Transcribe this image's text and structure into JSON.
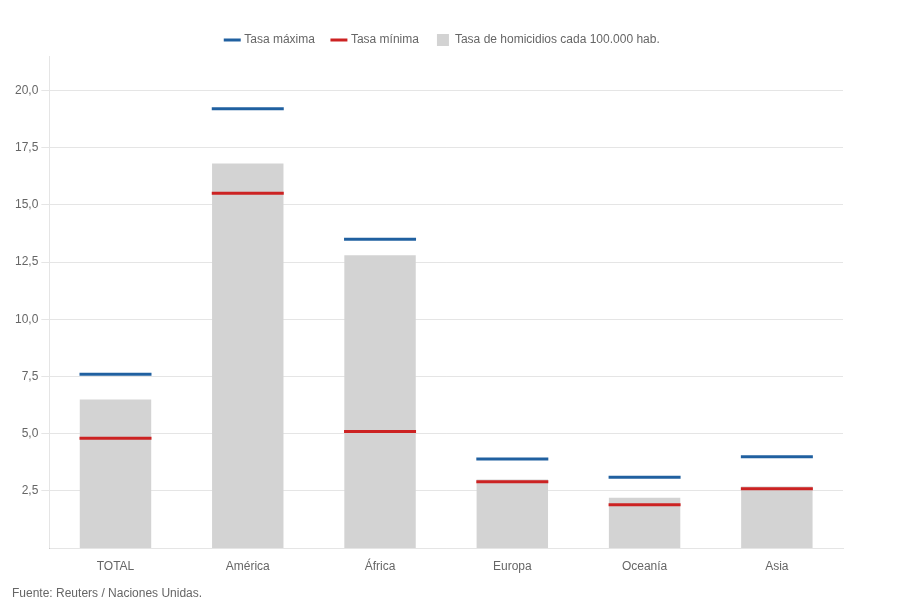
{
  "chart_data": {
    "type": "bar",
    "categories": [
      "TOTAL",
      "América",
      "África",
      "Europa",
      "Oceanía",
      "Asia"
    ],
    "series": [
      {
        "name": "Tasa de homicidios cada 100.000 hab.",
        "type": "bar",
        "color": "#d3d3d3",
        "values": [
          6.5,
          16.8,
          12.8,
          3.0,
          2.2,
          2.7
        ]
      },
      {
        "name": "Tasa máxima",
        "type": "scatter",
        "marker": "line",
        "color": "#2060a0",
        "values": [
          7.6,
          19.2,
          13.5,
          3.9,
          3.1,
          4.0
        ]
      },
      {
        "name": "Tasa mínima",
        "type": "scatter",
        "marker": "line",
        "color": "#cc2222",
        "values": [
          4.8,
          15.5,
          5.1,
          2.9,
          1.9,
          2.6
        ]
      }
    ],
    "ylim": [
      0,
      21.5
    ],
    "yticks": [
      {
        "value": 2.5,
        "label": "2,5"
      },
      {
        "value": 5.0,
        "label": "5,0"
      },
      {
        "value": 7.5,
        "label": "7,5"
      },
      {
        "value": 10.0,
        "label": "10,0"
      },
      {
        "value": 12.5,
        "label": "12,5"
      },
      {
        "value": 15.0,
        "label": "15,0"
      },
      {
        "value": 17.5,
        "label": "17,5"
      },
      {
        "value": 20.0,
        "label": "20,0"
      }
    ],
    "grid": true,
    "legend": "top",
    "annotations": [
      "Fuente: Reuters / Naciones Unidas."
    ]
  }
}
